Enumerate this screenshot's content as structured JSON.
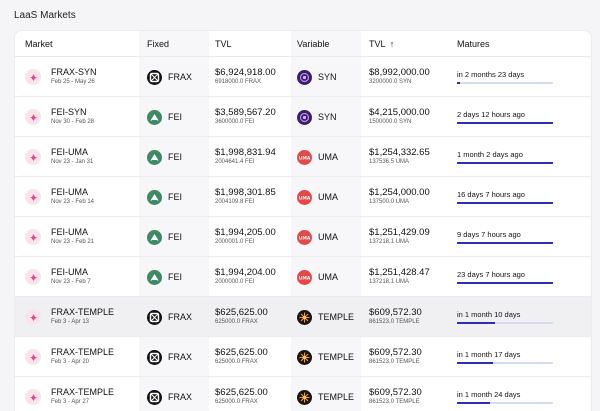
{
  "page_title": "LaaS Markets",
  "headers": {
    "market": "Market",
    "fixed": "Fixed",
    "tvl_fixed": "TVL",
    "variable": "Variable",
    "tvl_variable": "TVL",
    "sort_arrow": "↑",
    "matures": "Matures"
  },
  "rows": [
    {
      "market": "FRAX-SYN",
      "dates": "Feb 25 - May 26",
      "fixed_token": "FRAX",
      "fixed_icon": "frax-icon",
      "fixed_tvl": "$6,924,918.00",
      "fixed_amount": "6918000.0 FRAX",
      "var_token": "SYN",
      "var_icon": "syn-icon",
      "var_tvl": "$8,992,000.00",
      "var_amount": "3200000.0 SYN",
      "matures": "in 2 months 23 days",
      "progress": 0.03
    },
    {
      "market": "FEI-SYN",
      "dates": "Nov 30 - Feb 28",
      "fixed_token": "FEI",
      "fixed_icon": "fei-icon",
      "fixed_tvl": "$3,589,567.20",
      "fixed_amount": "3600000.0 FEI",
      "var_token": "SYN",
      "var_icon": "syn-icon",
      "var_tvl": "$4,215,000.00",
      "var_amount": "1500000.0 SYN",
      "matures": "2 days 12 hours ago",
      "progress": 1.0
    },
    {
      "market": "FEI-UMA",
      "dates": "Nov 23 - Jan 31",
      "fixed_token": "FEI",
      "fixed_icon": "fei-icon",
      "fixed_tvl": "$1,998,831.94",
      "fixed_amount": "2004641.4 FEI",
      "var_token": "UMA",
      "var_icon": "uma-icon",
      "var_tvl": "$1,254,332.65",
      "var_amount": "137536.5 UMA",
      "matures": "1 month 2 days ago",
      "progress": 1.0
    },
    {
      "market": "FEI-UMA",
      "dates": "Nov 23 - Feb 14",
      "fixed_token": "FEI",
      "fixed_icon": "fei-icon",
      "fixed_tvl": "$1,998,301.85",
      "fixed_amount": "2004109.8 FEI",
      "var_token": "UMA",
      "var_icon": "uma-icon",
      "var_tvl": "$1,254,000.00",
      "var_amount": "137500.0 UMA",
      "matures": "16 days 7 hours ago",
      "progress": 1.0
    },
    {
      "market": "FEI-UMA",
      "dates": "Nov 23 - Feb 21",
      "fixed_token": "FEI",
      "fixed_icon": "fei-icon",
      "fixed_tvl": "$1,994,205.00",
      "fixed_amount": "2000001.0 FEI",
      "var_token": "UMA",
      "var_icon": "uma-icon",
      "var_tvl": "$1,251,429.09",
      "var_amount": "137218.1 UMA",
      "matures": "9 days 7 hours ago",
      "progress": 1.0
    },
    {
      "market": "FEI-UMA",
      "dates": "Nov 23 - Feb 7",
      "fixed_token": "FEI",
      "fixed_icon": "fei-icon",
      "fixed_tvl": "$1,994,204.00",
      "fixed_amount": "2000000.0 FEI",
      "var_token": "UMA",
      "var_icon": "uma-icon",
      "var_tvl": "$1,251,428.47",
      "var_amount": "137218.1 UMA",
      "matures": "23 days 7 hours ago",
      "progress": 1.0
    },
    {
      "market": "FRAX-TEMPLE",
      "dates": "Feb 3 - Apr 13",
      "fixed_token": "FRAX",
      "fixed_icon": "frax-icon",
      "fixed_tvl": "$625,625.00",
      "fixed_amount": "625000.0 FRAX",
      "var_token": "TEMPLE",
      "var_icon": "temple-icon",
      "var_tvl": "$609,572.30",
      "var_amount": "861523.0 TEMPLE",
      "matures": "in 1 month 10 days",
      "progress": 0.4
    },
    {
      "market": "FRAX-TEMPLE",
      "dates": "Feb 3 - Apr 20",
      "fixed_token": "FRAX",
      "fixed_icon": "frax-icon",
      "fixed_tvl": "$625,625.00",
      "fixed_amount": "625000.0 FRAX",
      "var_token": "TEMPLE",
      "var_icon": "temple-icon",
      "var_tvl": "$609,572.30",
      "var_amount": "861523.0 TEMPLE",
      "matures": "in 1 month 17 days",
      "progress": 0.38
    },
    {
      "market": "FRAX-TEMPLE",
      "dates": "Feb 3 - Apr 27",
      "fixed_token": "FRAX",
      "fixed_icon": "frax-icon",
      "fixed_tvl": "$625,625.00",
      "fixed_amount": "625000.0 FRAX",
      "var_token": "TEMPLE",
      "var_icon": "temple-icon",
      "var_tvl": "$609,572.30",
      "var_amount": "861523.0 TEMPLE",
      "matures": "in 1 month 24 days",
      "progress": 0.34
    }
  ],
  "colors": {
    "bar_fill": "#2b2fb0",
    "bar_track": "#d8daf4",
    "fei": "#3d8a64",
    "uma": "#e24a4a",
    "syn": "#3a1e66",
    "frax": "#111111",
    "temple": "#1b1410"
  }
}
